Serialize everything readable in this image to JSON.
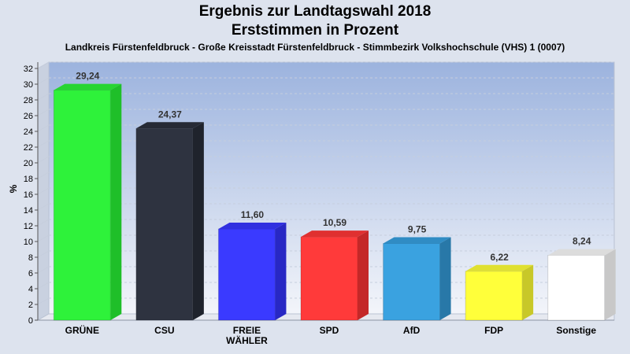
{
  "header": {
    "title_line1": "Ergebnis zur Landtagswahl 2018",
    "title_line2": "Erststimmen in Prozent",
    "subtitle": "Landkreis Fürstenfeldbruck - Große Kreisstadt Fürstenfeldbruck - Stimmbezirk Volkshochschule (VHS) 1 (0007)"
  },
  "chart_data": {
    "type": "bar",
    "title": "Ergebnis zur Landtagswahl 2018 Erststimmen in Prozent",
    "subtitle": "Landkreis Fürstenfeldbruck - Große Kreisstadt Fürstenfeldbruck - Stimmbezirk Volkshochschule (VHS) 1 (0007)",
    "ylabel": "%",
    "ylim": [
      0,
      32
    ],
    "yticks": [
      0,
      2,
      4,
      6,
      8,
      10,
      12,
      14,
      16,
      18,
      20,
      22,
      24,
      26,
      28,
      30,
      32
    ],
    "grid": true,
    "categories": [
      {
        "label_lines": [
          "GRÜNE"
        ],
        "value": 29.24,
        "value_label": "29,24",
        "color": "#2ef23a",
        "side": "#1fbf29",
        "top": "#27d532"
      },
      {
        "label_lines": [
          "CSU"
        ],
        "value": 24.37,
        "value_label": "24,37",
        "color": "#2e3340",
        "side": "#1f232c",
        "top": "#262a35"
      },
      {
        "label_lines": [
          "FREIE",
          "WÄHLER"
        ],
        "value": 11.6,
        "value_label": "11,60",
        "color": "#3a3aff",
        "side": "#2828c4",
        "top": "#3030e0"
      },
      {
        "label_lines": [
          "SPD"
        ],
        "value": 10.59,
        "value_label": "10,59",
        "color": "#ff3a3a",
        "side": "#c42828",
        "top": "#e03030"
      },
      {
        "label_lines": [
          "AfD"
        ],
        "value": 9.75,
        "value_label": "9,75",
        "color": "#3aa2e0",
        "side": "#2878a8",
        "top": "#308cc4"
      },
      {
        "label_lines": [
          "FDP"
        ],
        "value": 6.22,
        "value_label": "6,22",
        "color": "#ffff3a",
        "side": "#c8c828",
        "top": "#e0e030"
      },
      {
        "label_lines": [
          "Sonstige"
        ],
        "value": 8.24,
        "value_label": "8,24",
        "color": "#ffffff",
        "side": "#c8c8c8",
        "top": "#dcdcdc"
      }
    ]
  }
}
